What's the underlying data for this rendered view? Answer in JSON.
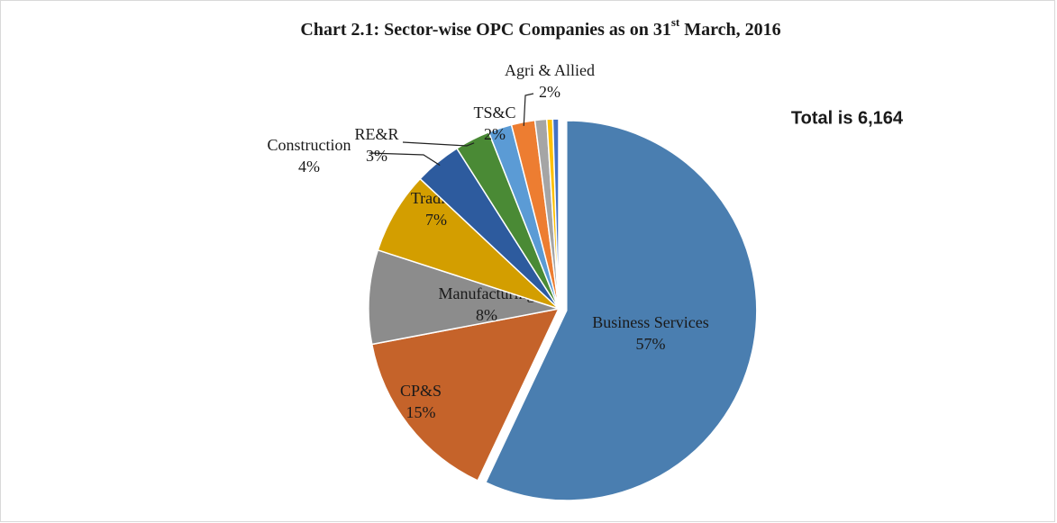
{
  "chart_data": {
    "type": "pie",
    "title": [
      "Chart 2.1: Sector-wise OPC Companies as on 31",
      "st",
      " March, 2016"
    ],
    "annotation": "Total is 6,164",
    "categories": [
      "Business Services",
      "CP&S",
      "Manufacturing",
      "Trading",
      "Construction",
      "RE&R",
      "TS&C",
      "Agri & Allied",
      null,
      null,
      null
    ],
    "values": [
      57,
      15,
      8,
      7,
      4,
      3,
      2,
      2,
      1,
      0.5,
      0.5
    ],
    "value_labels": [
      "57%",
      "15%",
      "8%",
      "7%",
      "4%",
      "3%",
      "2%",
      "2%",
      null,
      null,
      null
    ],
    "colors": [
      "#4a7eb0",
      "#c5632a",
      "#8c8c8c",
      "#d39e00",
      "#2d5b9e",
      "#4a8a35",
      "#5b9bd5",
      "#ed7d31",
      "#a5a5a5",
      "#ffc000",
      "#4472c4"
    ],
    "explode": [
      true,
      false,
      false,
      false,
      false,
      false,
      false,
      false,
      false,
      false,
      false
    ]
  }
}
